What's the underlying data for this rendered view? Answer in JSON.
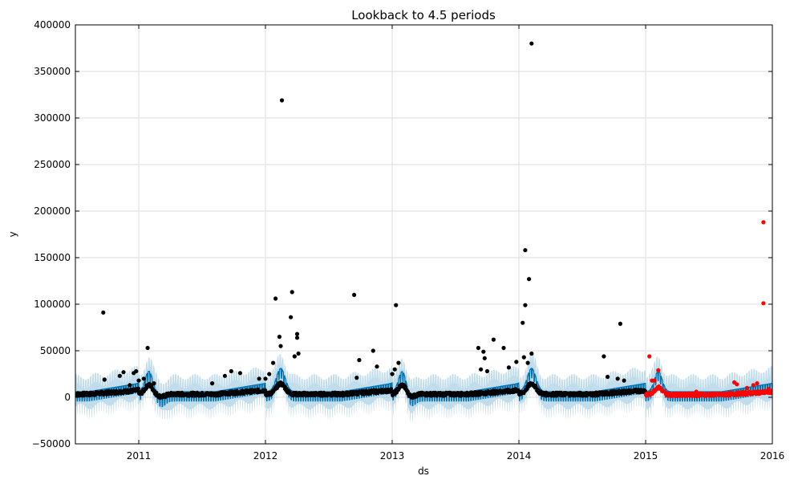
{
  "chart_data": {
    "type": "scatter",
    "title": "Lookback to 4.5 periods",
    "xlabel": "ds",
    "ylabel": "y",
    "xlim": [
      2010.5,
      2016.0
    ],
    "ylim": [
      -50000,
      400000
    ],
    "grid": true,
    "x_ticks": [
      {
        "value": 2011,
        "label": "2011"
      },
      {
        "value": 2012,
        "label": "2012"
      },
      {
        "value": 2013,
        "label": "2013"
      },
      {
        "value": 2014,
        "label": "2014"
      },
      {
        "value": 2015,
        "label": "2015"
      },
      {
        "value": 2016,
        "label": "2016"
      }
    ],
    "y_ticks": [
      {
        "value": -50000,
        "label": "−50000"
      },
      {
        "value": 0,
        "label": "0"
      },
      {
        "value": 50000,
        "label": "50000"
      },
      {
        "value": 100000,
        "label": "100000"
      },
      {
        "value": 150000,
        "label": "150000"
      },
      {
        "value": 200000,
        "label": "200000"
      },
      {
        "value": 250000,
        "label": "250000"
      },
      {
        "value": 300000,
        "label": "300000"
      },
      {
        "value": 350000,
        "label": "350000"
      },
      {
        "value": 400000,
        "label": "400000"
      }
    ],
    "colors": {
      "history_points": "#000000",
      "future_points": "#ff0000",
      "forecast_line": "#0072b2",
      "uncertainty_band": "#a6cee3"
    },
    "series": [
      {
        "kind": "history",
        "points": [
          [
            2010.72,
            91000
          ],
          [
            2010.73,
            19000
          ],
          [
            2010.85,
            23000
          ],
          [
            2010.88,
            27000
          ],
          [
            2010.93,
            13000
          ],
          [
            2010.96,
            26000
          ],
          [
            2010.98,
            28000
          ],
          [
            2011.0,
            18000
          ],
          [
            2011.04,
            20000
          ],
          [
            2011.07,
            53000
          ],
          [
            2011.12,
            15000
          ],
          [
            2011.58,
            15000
          ],
          [
            2011.68,
            23000
          ],
          [
            2011.73,
            28000
          ],
          [
            2011.8,
            26000
          ],
          [
            2011.95,
            20000
          ],
          [
            2012.0,
            20000
          ],
          [
            2012.03,
            25000
          ],
          [
            2012.06,
            37000
          ],
          [
            2012.08,
            106000
          ],
          [
            2012.11,
            65000
          ],
          [
            2012.12,
            55000
          ],
          [
            2012.13,
            319000
          ],
          [
            2012.2,
            86000
          ],
          [
            2012.21,
            113000
          ],
          [
            2012.23,
            44000
          ],
          [
            2012.25,
            68000
          ],
          [
            2012.25,
            64000
          ],
          [
            2012.26,
            47000
          ],
          [
            2012.7,
            110000
          ],
          [
            2012.72,
            21000
          ],
          [
            2012.74,
            40000
          ],
          [
            2012.85,
            50000
          ],
          [
            2012.88,
            33000
          ],
          [
            2013.0,
            25000
          ],
          [
            2013.02,
            30000
          ],
          [
            2013.03,
            99000
          ],
          [
            2013.05,
            37000
          ],
          [
            2013.68,
            53000
          ],
          [
            2013.7,
            30000
          ],
          [
            2013.72,
            49000
          ],
          [
            2013.73,
            42000
          ],
          [
            2013.75,
            28000
          ],
          [
            2013.8,
            62000
          ],
          [
            2013.88,
            53000
          ],
          [
            2013.92,
            32000
          ],
          [
            2013.98,
            38000
          ],
          [
            2014.03,
            80000
          ],
          [
            2014.04,
            43000
          ],
          [
            2014.05,
            158000
          ],
          [
            2014.05,
            99000
          ],
          [
            2014.07,
            37000
          ],
          [
            2014.08,
            127000
          ],
          [
            2014.1,
            380000
          ],
          [
            2014.1,
            47000
          ],
          [
            2014.67,
            44000
          ],
          [
            2014.7,
            22000
          ],
          [
            2014.78,
            20000
          ],
          [
            2014.8,
            79000
          ],
          [
            2014.83,
            18000
          ]
        ]
      },
      {
        "kind": "future",
        "points": [
          [
            2015.03,
            44000
          ],
          [
            2015.05,
            18000
          ],
          [
            2015.07,
            18000
          ],
          [
            2015.1,
            29000
          ],
          [
            2015.4,
            6000
          ],
          [
            2015.7,
            16000
          ],
          [
            2015.72,
            14000
          ],
          [
            2015.8,
            10000
          ],
          [
            2015.85,
            13000
          ],
          [
            2015.88,
            15000
          ],
          [
            2015.93,
            188000
          ],
          [
            2015.93,
            101000
          ],
          [
            2015.97,
            9000
          ]
        ]
      }
    ]
  }
}
